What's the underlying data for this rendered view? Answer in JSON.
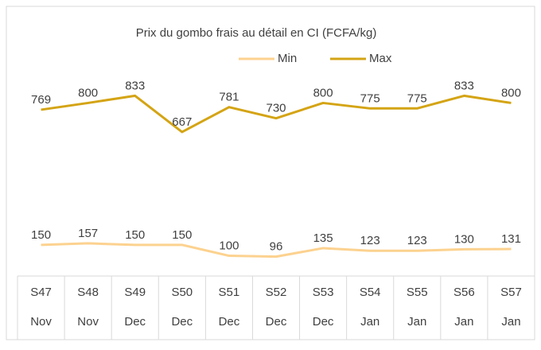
{
  "chart_data": {
    "type": "line",
    "title": "Prix du gombo frais au détail en CI (FCFA/kg)",
    "categories": [
      [
        "S47",
        "Nov"
      ],
      [
        "S48",
        "Nov"
      ],
      [
        "S49",
        "Dec"
      ],
      [
        "S50",
        "Dec"
      ],
      [
        "S51",
        "Dec"
      ],
      [
        "S52",
        "Dec"
      ],
      [
        "S53",
        "Dec"
      ],
      [
        "S54",
        "Jan"
      ],
      [
        "S55",
        "Jan"
      ],
      [
        "S56",
        "Jan"
      ],
      [
        "S57",
        "Jan"
      ]
    ],
    "series": [
      {
        "name": "Min",
        "color": "#fcd28f",
        "values": [
          150,
          157,
          150,
          150,
          100,
          96,
          135,
          123,
          123,
          130,
          131
        ]
      },
      {
        "name": "Max",
        "color": "#d4a414",
        "values": [
          769,
          800,
          833,
          667,
          781,
          730,
          800,
          775,
          775,
          833,
          800
        ]
      }
    ],
    "ylim": [
      0,
      900
    ],
    "legend": "top"
  }
}
